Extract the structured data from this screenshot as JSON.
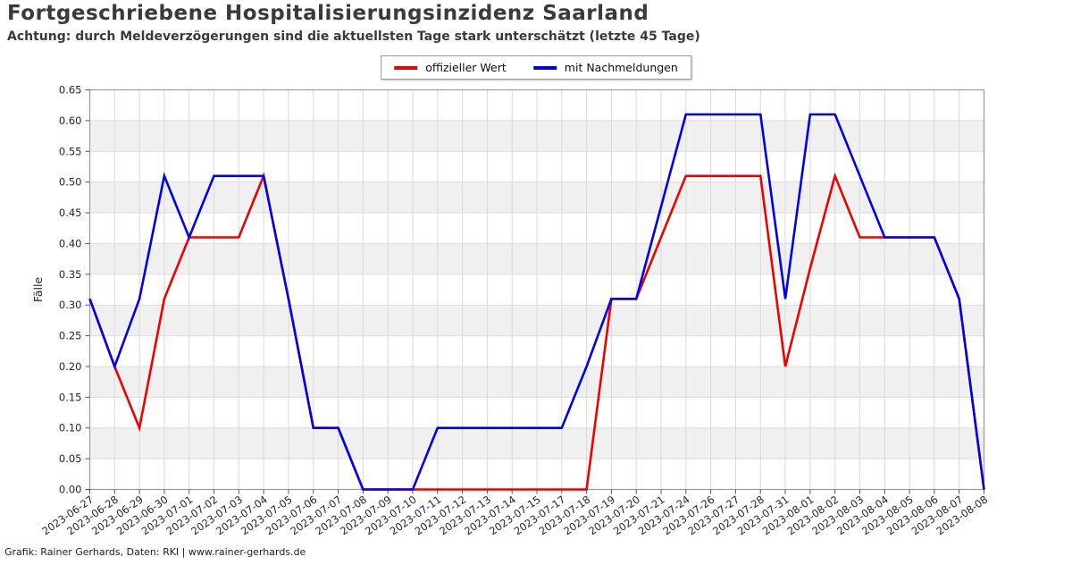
{
  "header": {
    "title": "Fortgeschriebene Hospitalisierungsinzidenz Saarland",
    "subtitle": "Achtung: durch Meldeverzögerungen sind die aktuellsten Tage stark unterschätzt (letzte 45 Tage)"
  },
  "legend": {
    "items": [
      {
        "label": "offizieller Wert",
        "color": "#ed0000"
      },
      {
        "label": "mit Nachmeldungen",
        "color": "#0000ed"
      }
    ]
  },
  "footer": {
    "credit": "Grafik: Rainer Gerhards, Daten: RKI | www.rainer-gerhards.de"
  },
  "chart_data": {
    "type": "line",
    "title": "Fortgeschriebene Hospitalisierungsinzidenz Saarland",
    "xlabel": "",
    "ylabel": "Fälle",
    "ylim": [
      0,
      0.65
    ],
    "ytick_step": 0.05,
    "grid": true,
    "background_bands": "alternating gray/white horizontal 0.05 bands",
    "legend_position": "top-center",
    "x": [
      "2023-06-27",
      "2023-06-28",
      "2023-06-29",
      "2023-06-30",
      "2023-07-01",
      "2023-07-02",
      "2023-07-03",
      "2023-07-04",
      "2023-07-05",
      "2023-07-06",
      "2023-07-07",
      "2023-07-08",
      "2023-07-09",
      "2023-07-10",
      "2023-07-11",
      "2023-07-12",
      "2023-07-13",
      "2023-07-14",
      "2023-07-15",
      "2023-07-17",
      "2023-07-18",
      "2023-07-19",
      "2023-07-20",
      "2023-07-21",
      "2023-07-24",
      "2023-07-26",
      "2023-07-27",
      "2023-07-28",
      "2023-07-31",
      "2023-08-01",
      "2023-08-02",
      "2023-08-03",
      "2023-08-04",
      "2023-08-05",
      "2023-08-06",
      "2023-08-07",
      "2023-08-08"
    ],
    "series": [
      {
        "name": "offizieller Wert",
        "color": "#ed0000",
        "values": [
          0.31,
          0.2,
          0.1,
          0.31,
          0.41,
          0.41,
          0.41,
          0.51,
          0.31,
          0.1,
          0.1,
          0.0,
          0.0,
          0.0,
          0.0,
          0.0,
          0.0,
          0.0,
          0.0,
          0.0,
          0.0,
          0.31,
          0.31,
          0.41,
          0.51,
          0.51,
          0.51,
          0.51,
          0.2,
          0.36,
          0.51,
          0.41,
          0.41,
          0.41,
          0.41,
          0.31,
          0.0
        ]
      },
      {
        "name": "mit Nachmeldungen",
        "color": "#0000ed",
        "values": [
          0.31,
          0.2,
          0.31,
          0.51,
          0.41,
          0.51,
          0.51,
          0.51,
          0.31,
          0.1,
          0.1,
          0.0,
          0.0,
          0.0,
          0.1,
          0.1,
          0.1,
          0.1,
          0.1,
          0.1,
          0.2,
          0.31,
          0.31,
          0.46,
          0.61,
          0.61,
          0.61,
          0.61,
          0.31,
          0.61,
          0.61,
          0.51,
          0.41,
          0.41,
          0.41,
          0.31,
          0.0
        ]
      }
    ]
  }
}
